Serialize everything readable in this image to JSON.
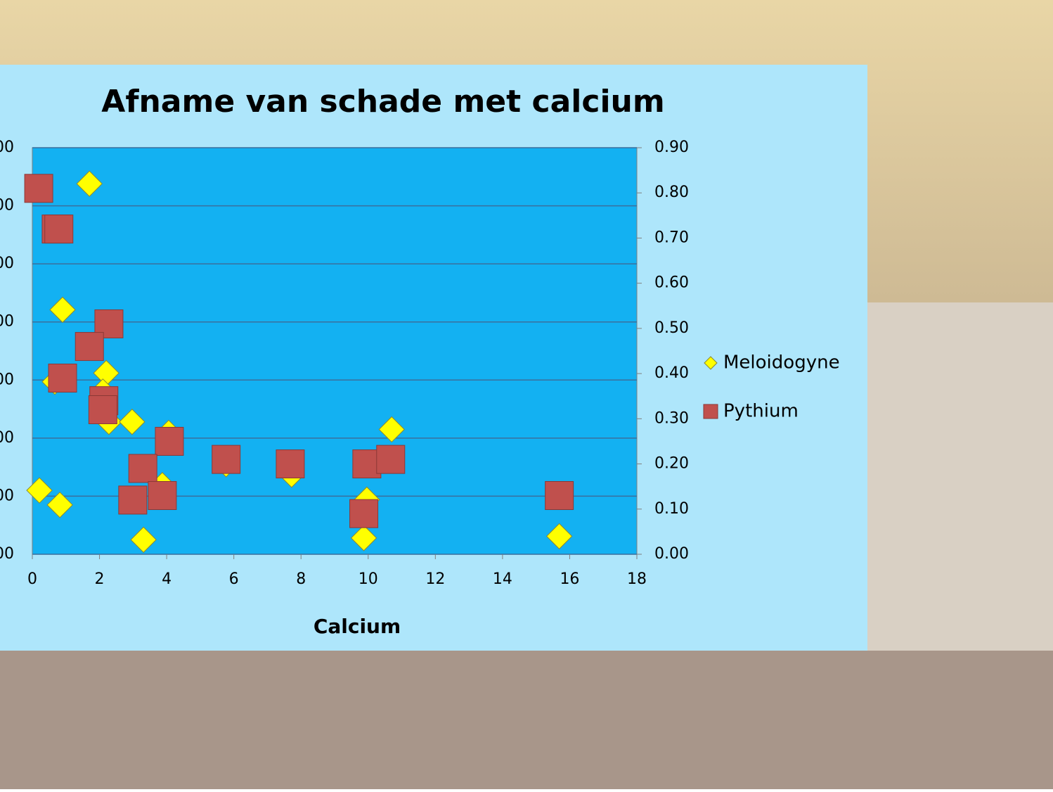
{
  "chart_data": {
    "type": "scatter",
    "title": "Afname van schade met calcium",
    "x_label": "Calcium",
    "xlim": [
      0,
      18
    ],
    "xticks": [
      0,
      2,
      4,
      6,
      8,
      10,
      12,
      14,
      16,
      18
    ],
    "ylim": [
      0,
      7
    ],
    "yticks": [
      {
        "value": 0,
        "label": "00"
      },
      {
        "value": 1,
        "label": "00"
      },
      {
        "value": 2,
        "label": "00"
      },
      {
        "value": 3,
        "label": "00"
      },
      {
        "value": 4,
        "label": "00"
      },
      {
        "value": 5,
        "label": "00"
      },
      {
        "value": 6,
        "label": "00"
      },
      {
        "value": 7,
        "label": "00"
      }
    ],
    "y2lim": [
      0,
      0.9
    ],
    "y2ticks": [
      {
        "value": 0,
        "label": "0.00"
      },
      {
        "value": 0.1,
        "label": "0.10"
      },
      {
        "value": 0.2,
        "label": "0.20"
      },
      {
        "value": 0.3,
        "label": "0.30"
      },
      {
        "value": 0.4,
        "label": "0.40"
      },
      {
        "value": 0.5,
        "label": "0.50"
      },
      {
        "value": 0.6,
        "label": "0.60"
      },
      {
        "value": 0.7,
        "label": "0.70"
      },
      {
        "value": 0.8,
        "label": "0.80"
      },
      {
        "value": 0.9,
        "label": "0.90"
      }
    ],
    "grid": true,
    "legend": "right",
    "series": [
      {
        "name": "Meloidogyne",
        "color": "#ffff00",
        "marker": "diamond",
        "x": [
          1.7,
          0.9,
          2.2,
          0.67,
          2.1,
          2.28,
          2.97,
          4.06,
          10.7,
          0.21,
          0.82,
          3.87,
          7.72,
          5.77,
          9.96,
          3.31,
          9.87,
          15.69
        ],
        "values": [
          6.38,
          4.21,
          3.12,
          2.97,
          2.8,
          2.28,
          2.28,
          2.09,
          2.15,
          1.1,
          0.85,
          1.19,
          1.37,
          1.55,
          0.94,
          0.25,
          0.28,
          0.31
        ]
      },
      {
        "name": "Pythium",
        "color": "#c0504d",
        "marker": "square",
        "axis": "y2",
        "x": [
          0.19,
          0.71,
          0.79,
          2.28,
          1.7,
          0.9,
          2.13,
          2.1,
          4.08,
          5.77,
          7.68,
          3.29,
          9.96,
          10.67,
          2.99,
          3.87,
          9.87,
          15.69
        ],
        "values": [
          0.81,
          0.72,
          0.72,
          0.51,
          0.46,
          0.39,
          0.34,
          0.32,
          0.25,
          0.21,
          0.2,
          0.19,
          0.2,
          0.21,
          0.12,
          0.13,
          0.09,
          0.13
        ]
      }
    ]
  }
}
